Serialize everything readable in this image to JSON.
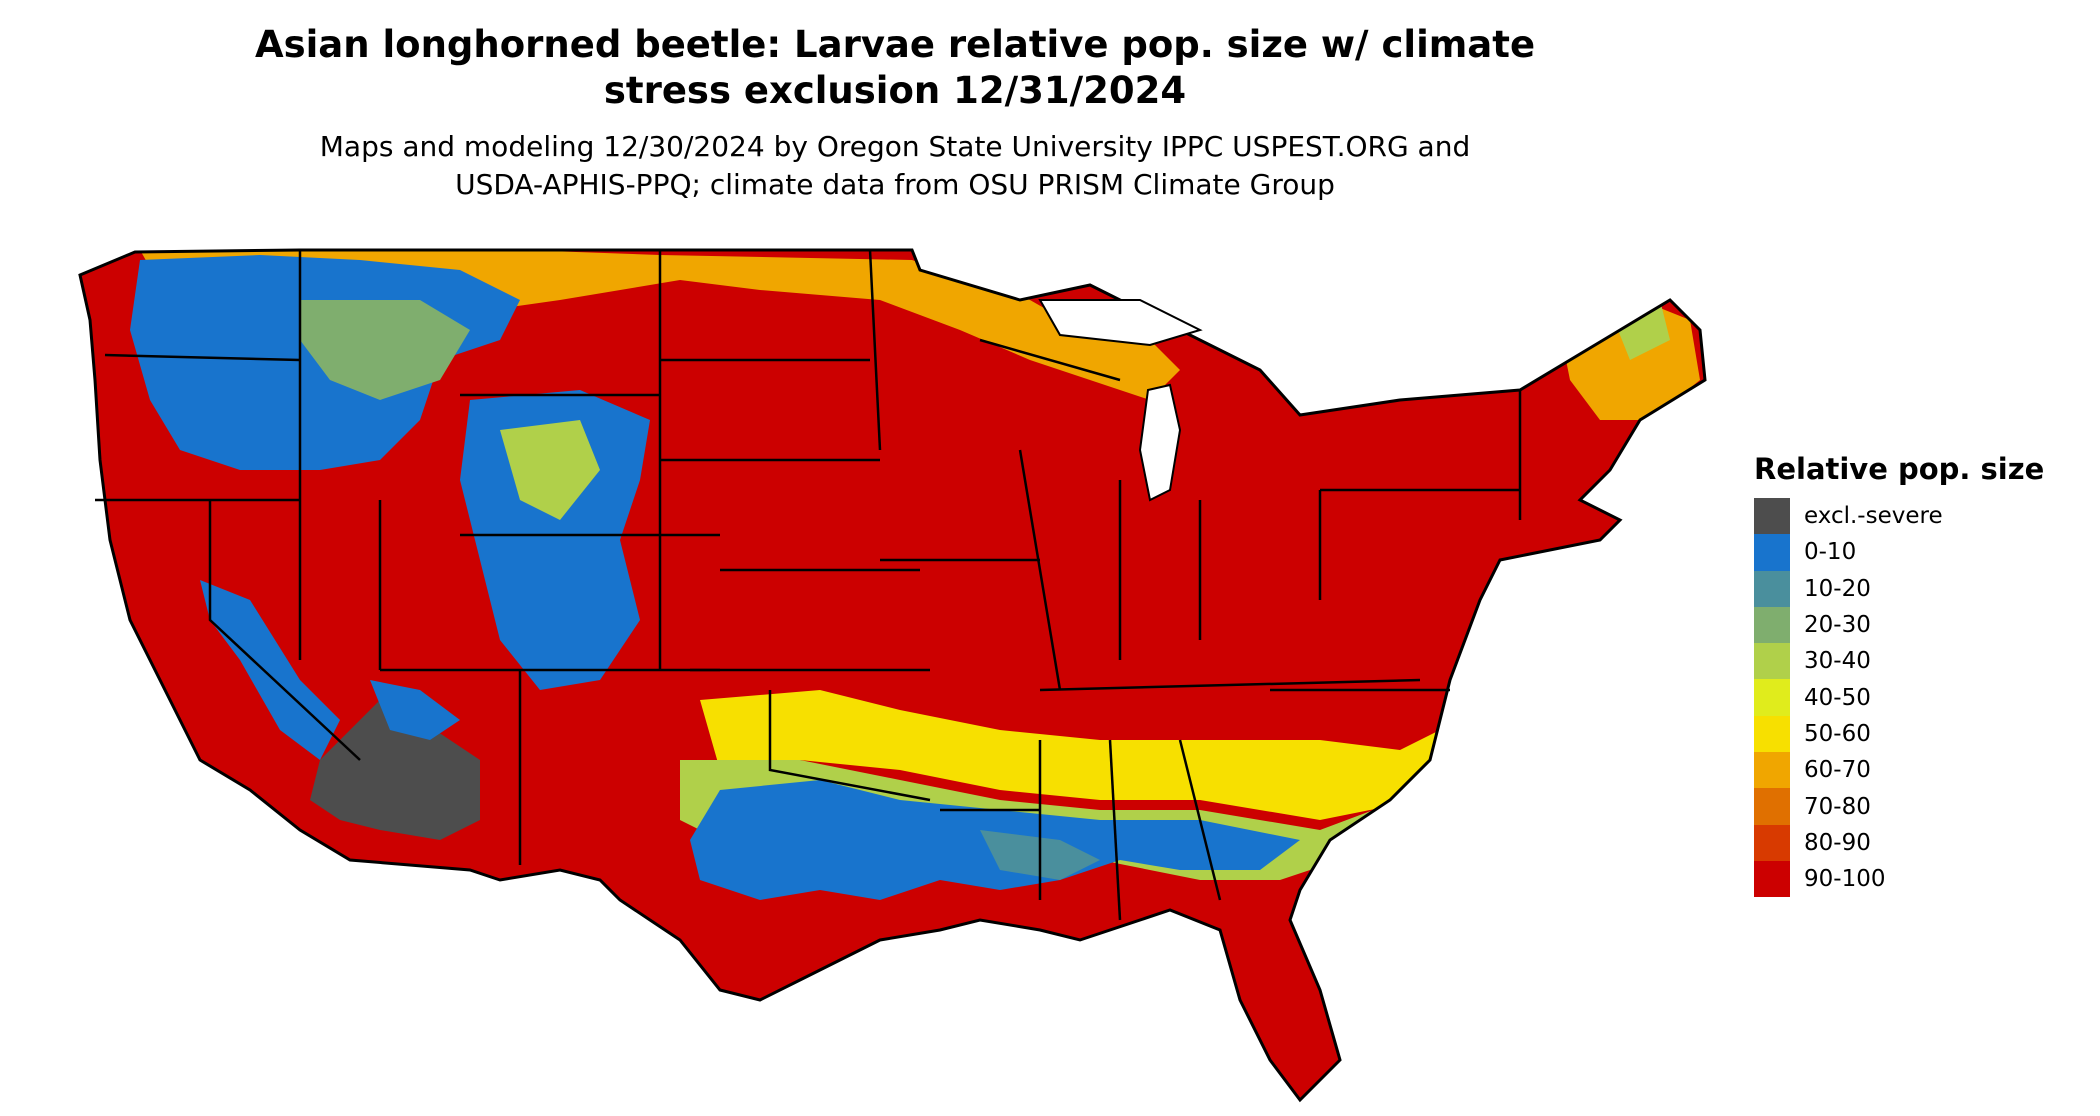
{
  "title_lines": [
    "Asian longhorned beetle: Larvae relative pop. size w/ climate",
    "stress exclusion 12/31/2024"
  ],
  "subtitle_lines": [
    "Maps and modeling 12/30/2024 by Oregon State University IPPC USPEST.ORG and",
    "USDA-APHIS-PPQ; climate data from OSU PRISM Climate Group"
  ],
  "legend": {
    "title": "Relative pop. size",
    "items": [
      {
        "label": "excl.-severe",
        "color": "#4d4d4d"
      },
      {
        "label": "0-10",
        "color": "#1874cd"
      },
      {
        "label": "10-20",
        "color": "#4a8f9d"
      },
      {
        "label": "20-30",
        "color": "#7fae6e"
      },
      {
        "label": "30-40",
        "color": "#b0d04a"
      },
      {
        "label": "40-50",
        "color": "#e0ec1c"
      },
      {
        "label": "50-60",
        "color": "#f7e000"
      },
      {
        "label": "60-70",
        "color": "#f0a600"
      },
      {
        "label": "70-80",
        "color": "#e07000"
      },
      {
        "label": "80-90",
        "color": "#d83a00"
      },
      {
        "label": "90-100",
        "color": "#cc0000"
      }
    ]
  },
  "map": {
    "background_color": "#cc0000",
    "boundary_color": "#000000"
  }
}
